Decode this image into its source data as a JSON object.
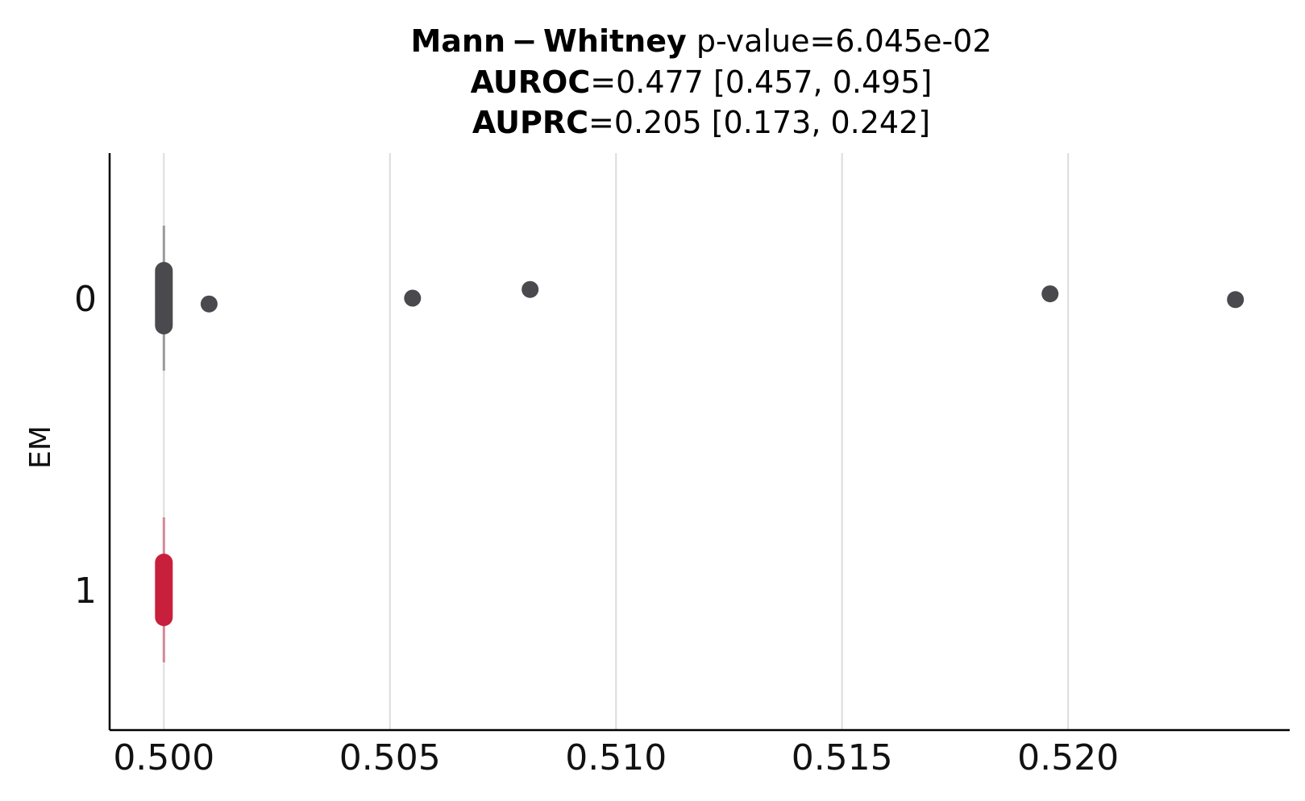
{
  "chart_data": {
    "type": "strip",
    "title": {
      "line1_bold": "Mann − Whitney",
      "line1_rest": " p-value=6.045e-02",
      "line2_bold": "AUROC",
      "line2_rest": "=0.477 [0.457, 0.495]",
      "line3_bold": "AUPRC",
      "line3_rest": "=0.205 [0.173, 0.242]"
    },
    "xlabel": "",
    "ylabel": "EM",
    "xlim": [
      0.4988,
      0.5249
    ],
    "xticks": [
      "0.500",
      "0.505",
      "0.510",
      "0.515",
      "0.520"
    ],
    "xtick_values": [
      0.5,
      0.505,
      0.51,
      0.515,
      0.52
    ],
    "categories": [
      "0",
      "1"
    ],
    "grid": "vertical",
    "series": [
      {
        "category": "0",
        "color": "#4a4a4e",
        "whisker_color": "#9a9a9a",
        "points": [
          {
            "x": 0.5,
            "jitter": -0.1
          },
          {
            "x": 0.5,
            "jitter": -0.07
          },
          {
            "x": 0.5,
            "jitter": -0.04
          },
          {
            "x": 0.5,
            "jitter": -0.01
          },
          {
            "x": 0.5,
            "jitter": 0.02
          },
          {
            "x": 0.5,
            "jitter": 0.05
          },
          {
            "x": 0.5,
            "jitter": 0.08
          },
          {
            "x": 0.5,
            "jitter": 0.1
          },
          {
            "x": 0.501,
            "jitter": 0.04
          },
          {
            "x": 0.5055,
            "jitter": 0.0
          },
          {
            "x": 0.5081,
            "jitter": -0.06
          },
          {
            "x": 0.5196,
            "jitter": -0.03
          },
          {
            "x": 0.5237,
            "jitter": 0.01
          }
        ]
      },
      {
        "category": "1",
        "color": "#c8203c",
        "whisker_color": "#d08a96",
        "points": [
          {
            "x": 0.5,
            "jitter": -0.1
          },
          {
            "x": 0.5,
            "jitter": -0.07
          },
          {
            "x": 0.5,
            "jitter": -0.04
          },
          {
            "x": 0.5,
            "jitter": -0.01
          },
          {
            "x": 0.5,
            "jitter": 0.02
          },
          {
            "x": 0.5,
            "jitter": 0.05
          },
          {
            "x": 0.5,
            "jitter": 0.08
          },
          {
            "x": 0.5,
            "jitter": 0.1
          }
        ]
      }
    ]
  }
}
